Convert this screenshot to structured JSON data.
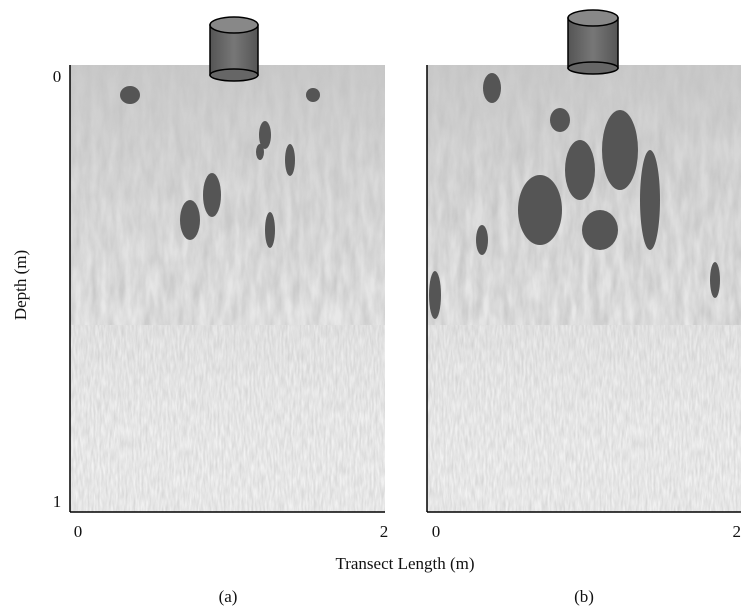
{
  "y_label": "Depth (m)",
  "x_label": "Transect Length (m)",
  "y_ticks": [
    "0",
    "1"
  ],
  "panels": [
    {
      "label": "(a)",
      "x_ticks": [
        "0",
        "2"
      ]
    },
    {
      "label": "(b)",
      "x_ticks": [
        "0",
        "2"
      ]
    }
  ]
}
